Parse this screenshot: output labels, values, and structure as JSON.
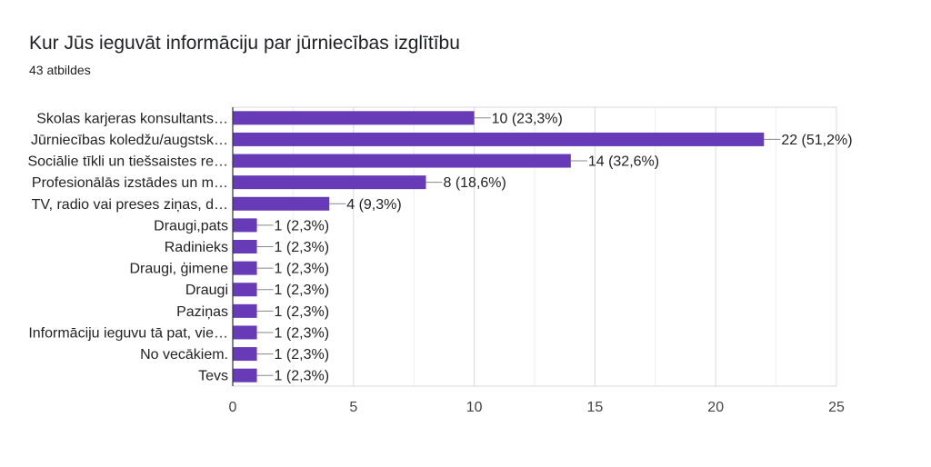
{
  "chart_data": {
    "type": "bar",
    "orientation": "horizontal",
    "title": "Kur Jūs ieguvāt informāciju par jūrniecības izglītību",
    "subtitle": "43 atbildes",
    "categories": [
      "Skolas karjeras konsultants…",
      "Jūrniecības koledžu/augstsk…",
      "Sociālie tīkli un tiešsaistes re…",
      "Profesionālās izstādes un m…",
      "TV, radio vai preses ziņas, d…",
      "Draugi,pats",
      "Radinieks",
      "Draugi, ģimene",
      "Draugi",
      "Paziņas",
      "Informāciju ieguvu tā pat, vie…",
      "No vecākiem.",
      "Tevs"
    ],
    "values": [
      10,
      22,
      14,
      8,
      4,
      1,
      1,
      1,
      1,
      1,
      1,
      1,
      1
    ],
    "data_labels": [
      "10 (23,3%)",
      "22 (51,2%)",
      "14 (32,6%)",
      "8 (18,6%)",
      "4 (9,3%)",
      "1 (2,3%)",
      "1 (2,3%)",
      "1 (2,3%)",
      "1 (2,3%)",
      "1 (2,3%)",
      "1 (2,3%)",
      "1 (2,3%)",
      "1 (2,3%)"
    ],
    "xlim": [
      0,
      25
    ],
    "xticks": [
      0,
      5,
      10,
      15,
      20,
      25
    ],
    "xtick_labels": [
      "0",
      "5",
      "10",
      "15",
      "20",
      "25"
    ],
    "grid": true,
    "bar_color": "#673ab7"
  }
}
